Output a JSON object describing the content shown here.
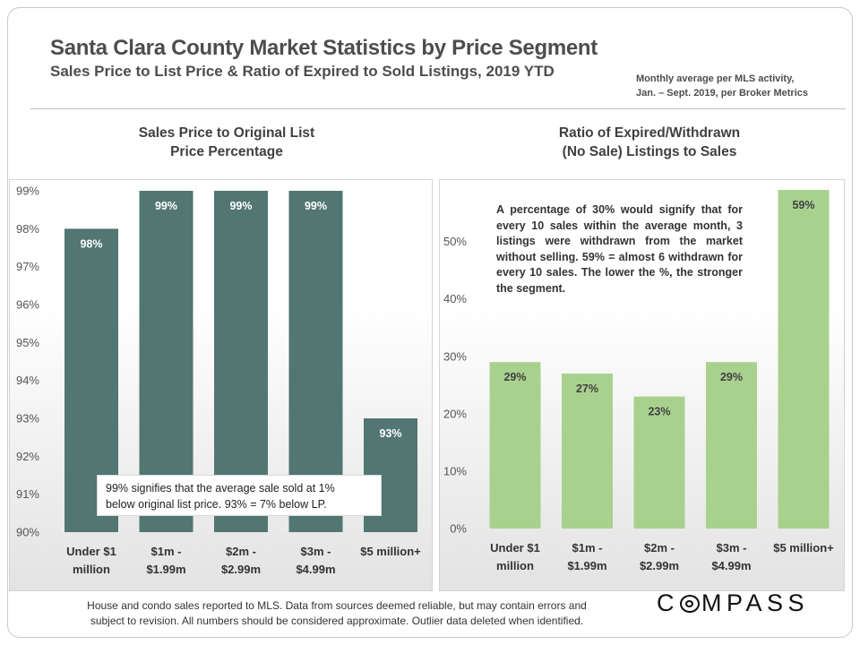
{
  "header": {
    "title": "Santa Clara County Market Statistics by Price Segment",
    "subtitle": "Sales Price to List Price & Ratio of Expired to Sold Listings, 2019 YTD",
    "note_line1": "Monthly average per MLS activity,",
    "note_line2": "Jan. – Sept. 2019, per Broker Metrics"
  },
  "footer": {
    "line1": "House and condo sales reported to MLS. Data from sources deemed reliable, but may contain errors and",
    "line2": "subject to revision. All numbers should be considered approximate. Outlier data deleted when identified."
  },
  "logo": {
    "before": "C",
    "middle": "O",
    "after": "MPASS"
  },
  "colors": {
    "left_bar": "#527671",
    "right_bar": "#a9d18e",
    "text": "#404040"
  },
  "chart_data": [
    {
      "type": "bar",
      "title_line1": "Sales Price to Original List",
      "title_line2": "Price Percentage",
      "categories": [
        [
          "Under $1",
          "million"
        ],
        [
          "$1m -",
          "$1.99m"
        ],
        [
          "$2m -",
          "$2.99m"
        ],
        [
          "$3m -",
          "$4.99m"
        ],
        [
          "$5 million+"
        ]
      ],
      "values": [
        98,
        99,
        99,
        99,
        93
      ],
      "data_labels": [
        "98%",
        "99%",
        "99%",
        "99%",
        "93%"
      ],
      "ylim": [
        90,
        99
      ],
      "yticks": [
        90,
        91,
        92,
        93,
        94,
        95,
        96,
        97,
        98,
        99
      ],
      "ytick_labels": [
        "90%",
        "91%",
        "92%",
        "93%",
        "94%",
        "95%",
        "96%",
        "97%",
        "98%",
        "99%"
      ],
      "annotation_line1": "99% signifies that the average sale sold at 1%",
      "annotation_line2": "below original list price. 93% = 7% below LP."
    },
    {
      "type": "bar",
      "title_line1": "Ratio of Expired/Withdrawn",
      "title_line2": "(No Sale) Listings to Sales",
      "categories": [
        [
          "Under $1",
          "million"
        ],
        [
          "$1m -",
          "$1.99m"
        ],
        [
          "$2m -",
          "$2.99m"
        ],
        [
          "$3m -",
          "$4.99m"
        ],
        [
          "$5 million+"
        ]
      ],
      "values": [
        29,
        27,
        23,
        29,
        59
      ],
      "data_labels": [
        "29%",
        "27%",
        "23%",
        "29%",
        "59%"
      ],
      "ylim": [
        0,
        59
      ],
      "yticks": [
        0,
        10,
        20,
        30,
        40,
        50
      ],
      "ytick_labels": [
        "0%",
        "10%",
        "20%",
        "30%",
        "40%",
        "50%"
      ],
      "annotation": "A percentage of 30% would signify that for every 10 sales within the average month, 3 listings were withdrawn from the market without selling. 59% = almost 6 withdrawn for every 10 sales. The lower the %, the stronger the segment."
    }
  ]
}
